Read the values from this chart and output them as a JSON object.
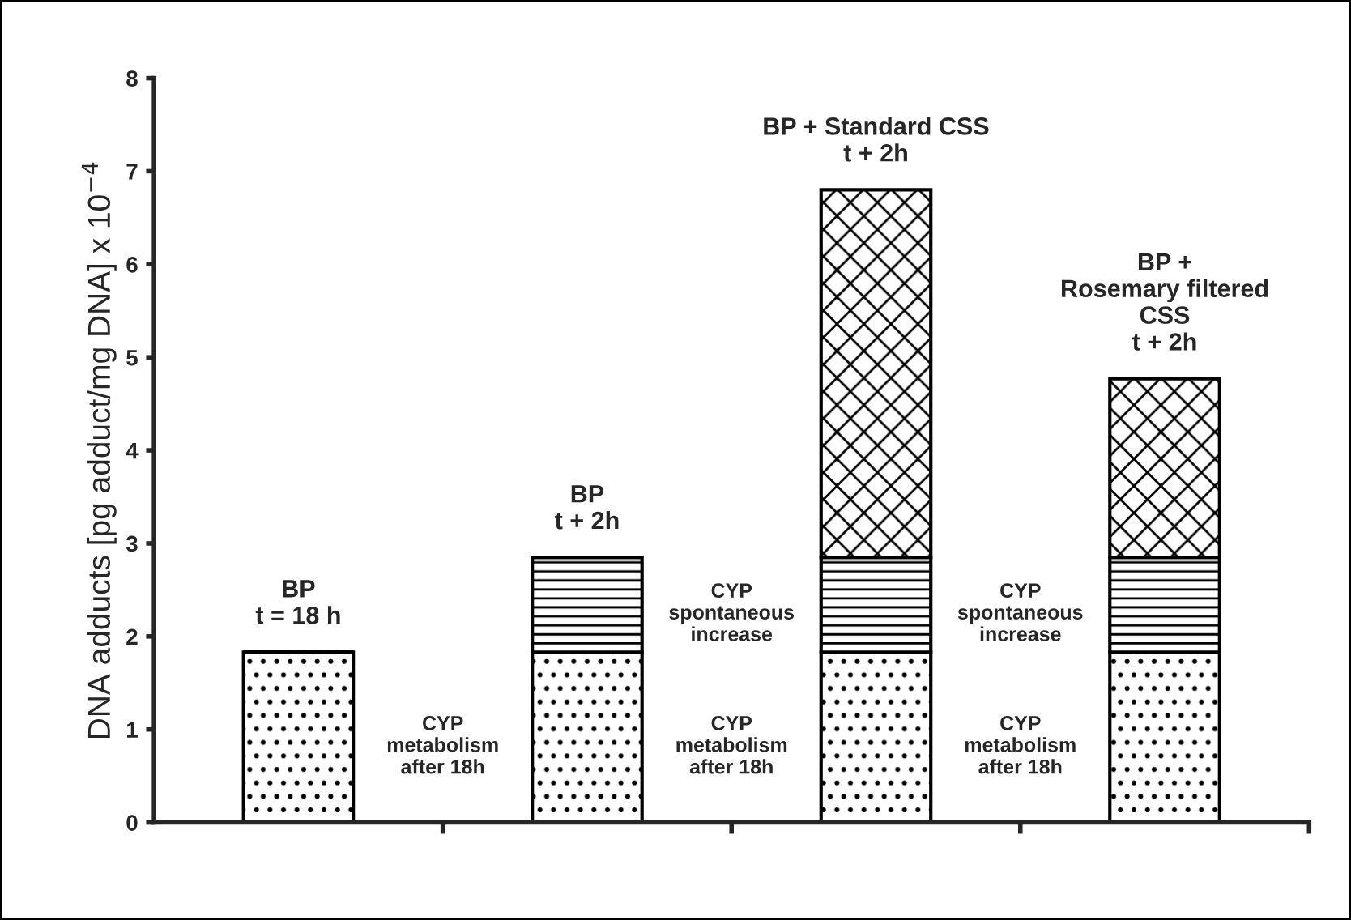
{
  "chart_data": {
    "type": "bar",
    "stacked": true,
    "ylabel": "DNA adducts [pg adduct/mg DNA] x 10$^{−4}$",
    "categories": [
      "BP\nt = 18 h",
      null,
      "BP\nt + 2h",
      null,
      "BP + Standard CSS\nt + 2h",
      null,
      "BP +\nRosemary filtered\nCSS\nt + 2h"
    ],
    "series": [
      {
        "name": "CYP\nmetabolism\nafter 18h",
        "color": "#000000",
        "values": [
          1.83,
          null,
          1.83,
          null,
          1.83,
          null,
          1.83
        ]
      },
      {
        "name": "CYP\nspontaneous\nincrease",
        "color": "#000000",
        "values": [
          0,
          null,
          1.02,
          null,
          1.02,
          null,
          1.02
        ]
      },
      {
        "color": "#000000",
        "values": [
          0,
          null,
          0,
          null,
          3.95,
          null,
          1.92
        ]
      }
    ],
    "ylim": [
      0,
      8
    ],
    "yticks": [
      0,
      1,
      2,
      3,
      4,
      5,
      6,
      7,
      8
    ],
    "grid": false,
    "legend": false
  }
}
